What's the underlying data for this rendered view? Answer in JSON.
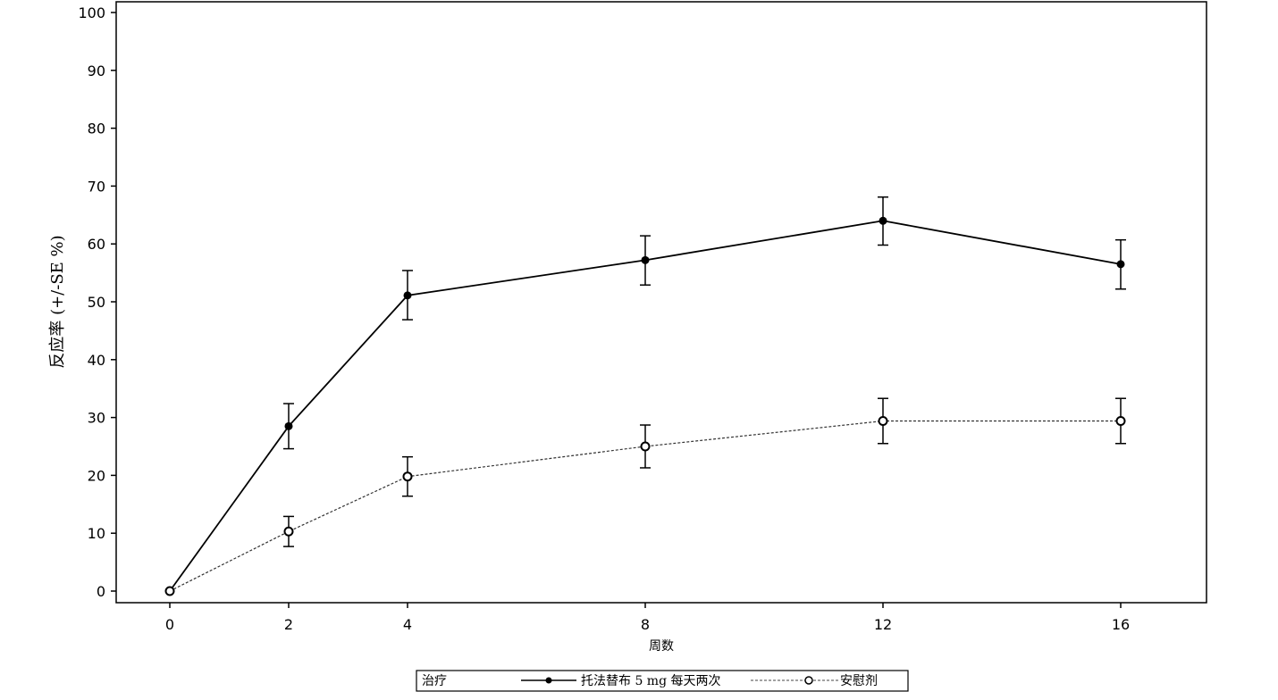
{
  "chart_data": {
    "type": "line",
    "title": "",
    "xlabel": "周数",
    "ylabel": "反应率 (+/-SE %)",
    "x": [
      0,
      2,
      4,
      8,
      12,
      16
    ],
    "xlim": [
      -4.3,
      23.6
    ],
    "ylim": [
      0,
      100
    ],
    "yticks": [
      0,
      10,
      20,
      30,
      40,
      50,
      60,
      70,
      80,
      90,
      100
    ],
    "grid": false,
    "legend_title": "治疗",
    "legend_position": "bottom",
    "series": [
      {
        "name": "托法替布 5 mg 每天两次",
        "style": "solid",
        "marker": "filled-circle",
        "color": "#000000",
        "values": [
          0,
          28.5,
          51.1,
          57.2,
          64.0,
          56.5
        ],
        "err_low": [
          0,
          24.6,
          46.9,
          52.9,
          59.8,
          52.2
        ],
        "err_high": [
          0,
          32.4,
          55.4,
          61.4,
          68.1,
          60.7
        ]
      },
      {
        "name": "安慰剂",
        "style": "dashed",
        "marker": "open-circle",
        "color": "#333333",
        "values": [
          0,
          10.3,
          19.8,
          25.0,
          29.4,
          29.4
        ],
        "err_low": [
          0,
          7.7,
          16.4,
          21.3,
          25.5,
          25.5
        ],
        "err_high": [
          0,
          12.9,
          23.2,
          28.7,
          33.3,
          33.3
        ]
      }
    ]
  }
}
